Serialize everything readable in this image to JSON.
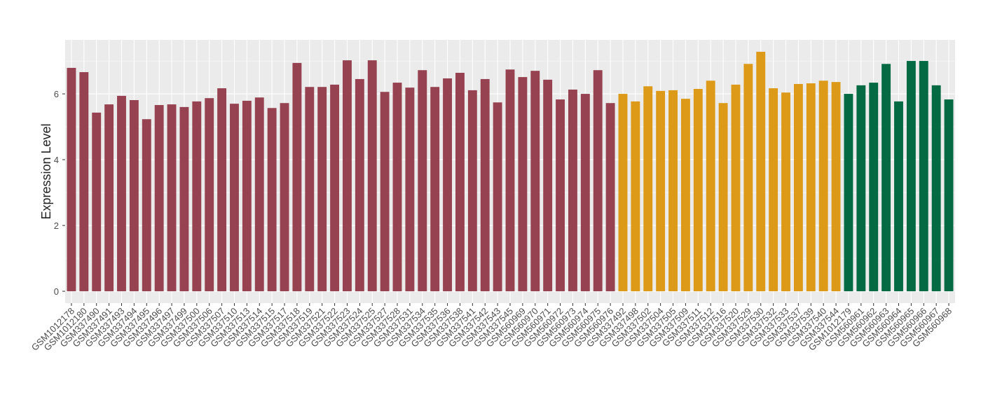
{
  "chart_data": {
    "type": "bar",
    "y_label": "Expression Level",
    "categories": [
      "GSM1012178",
      "GSM1012180",
      "GSM337490",
      "GSM337491",
      "GSM337493",
      "GSM337494",
      "GSM337495",
      "GSM337496",
      "GSM337497",
      "GSM337499",
      "GSM337500",
      "GSM337506",
      "GSM337507",
      "GSM337510",
      "GSM337513",
      "GSM337514",
      "GSM337515",
      "GSM337517",
      "GSM337518",
      "GSM337519",
      "GSM337521",
      "GSM337522",
      "GSM337523",
      "GSM337524",
      "GSM337525",
      "GSM337527",
      "GSM337528",
      "GSM337531",
      "GSM337534",
      "GSM337535",
      "GSM337536",
      "GSM337538",
      "GSM337541",
      "GSM337542",
      "GSM337543",
      "GSM337545",
      "GSM560969",
      "GSM560970",
      "GSM560971",
      "GSM560972",
      "GSM560973",
      "GSM560974",
      "GSM560975",
      "GSM560976",
      "GSM337492",
      "GSM337498",
      "GSM337502",
      "GSM337504",
      "GSM337505",
      "GSM337509",
      "GSM337511",
      "GSM337512",
      "GSM337516",
      "GSM337520",
      "GSM337529",
      "GSM337530",
      "GSM337532",
      "GSM337533",
      "GSM337537",
      "GSM337539",
      "GSM337540",
      "GSM337544",
      "GSM1012179",
      "GSM560961",
      "GSM560962",
      "GSM560963",
      "GSM560964",
      "GSM560965",
      "GSM560966",
      "GSM560967",
      "GSM560968"
    ],
    "values": [
      6.79,
      6.66,
      5.43,
      5.68,
      5.94,
      5.81,
      5.23,
      5.66,
      5.68,
      5.6,
      5.77,
      5.87,
      6.17,
      5.7,
      5.79,
      5.89,
      5.57,
      5.72,
      6.94,
      6.21,
      6.21,
      6.28,
      7.02,
      6.45,
      7.02,
      6.06,
      6.34,
      6.19,
      6.72,
      6.21,
      6.47,
      6.64,
      6.11,
      6.45,
      5.74,
      6.74,
      6.51,
      6.7,
      6.43,
      5.83,
      6.13,
      6.0,
      6.72,
      5.72,
      6.0,
      5.77,
      6.23,
      6.09,
      6.11,
      5.85,
      6.15,
      6.4,
      5.72,
      6.28,
      6.91,
      7.28,
      6.17,
      6.04,
      6.3,
      6.32,
      6.4,
      6.36,
      6.0,
      6.26,
      6.34,
      6.91,
      5.77,
      7.0,
      7.0,
      6.26,
      5.83
    ],
    "colors": [
      "#964250",
      "#964250",
      "#964250",
      "#964250",
      "#964250",
      "#964250",
      "#964250",
      "#964250",
      "#964250",
      "#964250",
      "#964250",
      "#964250",
      "#964250",
      "#964250",
      "#964250",
      "#964250",
      "#964250",
      "#964250",
      "#964250",
      "#964250",
      "#964250",
      "#964250",
      "#964250",
      "#964250",
      "#964250",
      "#964250",
      "#964250",
      "#964250",
      "#964250",
      "#964250",
      "#964250",
      "#964250",
      "#964250",
      "#964250",
      "#964250",
      "#964250",
      "#964250",
      "#964250",
      "#964250",
      "#964250",
      "#964250",
      "#964250",
      "#964250",
      "#964250",
      "#dc9a18",
      "#dc9a18",
      "#dc9a18",
      "#dc9a18",
      "#dc9a18",
      "#dc9a18",
      "#dc9a18",
      "#dc9a18",
      "#dc9a18",
      "#dc9a18",
      "#dc9a18",
      "#dc9a18",
      "#dc9a18",
      "#dc9a18",
      "#dc9a18",
      "#dc9a18",
      "#dc9a18",
      "#dc9a18",
      "#036a43",
      "#036a43",
      "#036a43",
      "#036a43",
      "#036a43",
      "#036a43",
      "#036a43",
      "#036a43",
      "#036a43"
    ],
    "ylim": [
      -0.36,
      7.64
    ],
    "yticks": [
      0,
      2,
      4,
      6
    ],
    "grid": true
  }
}
